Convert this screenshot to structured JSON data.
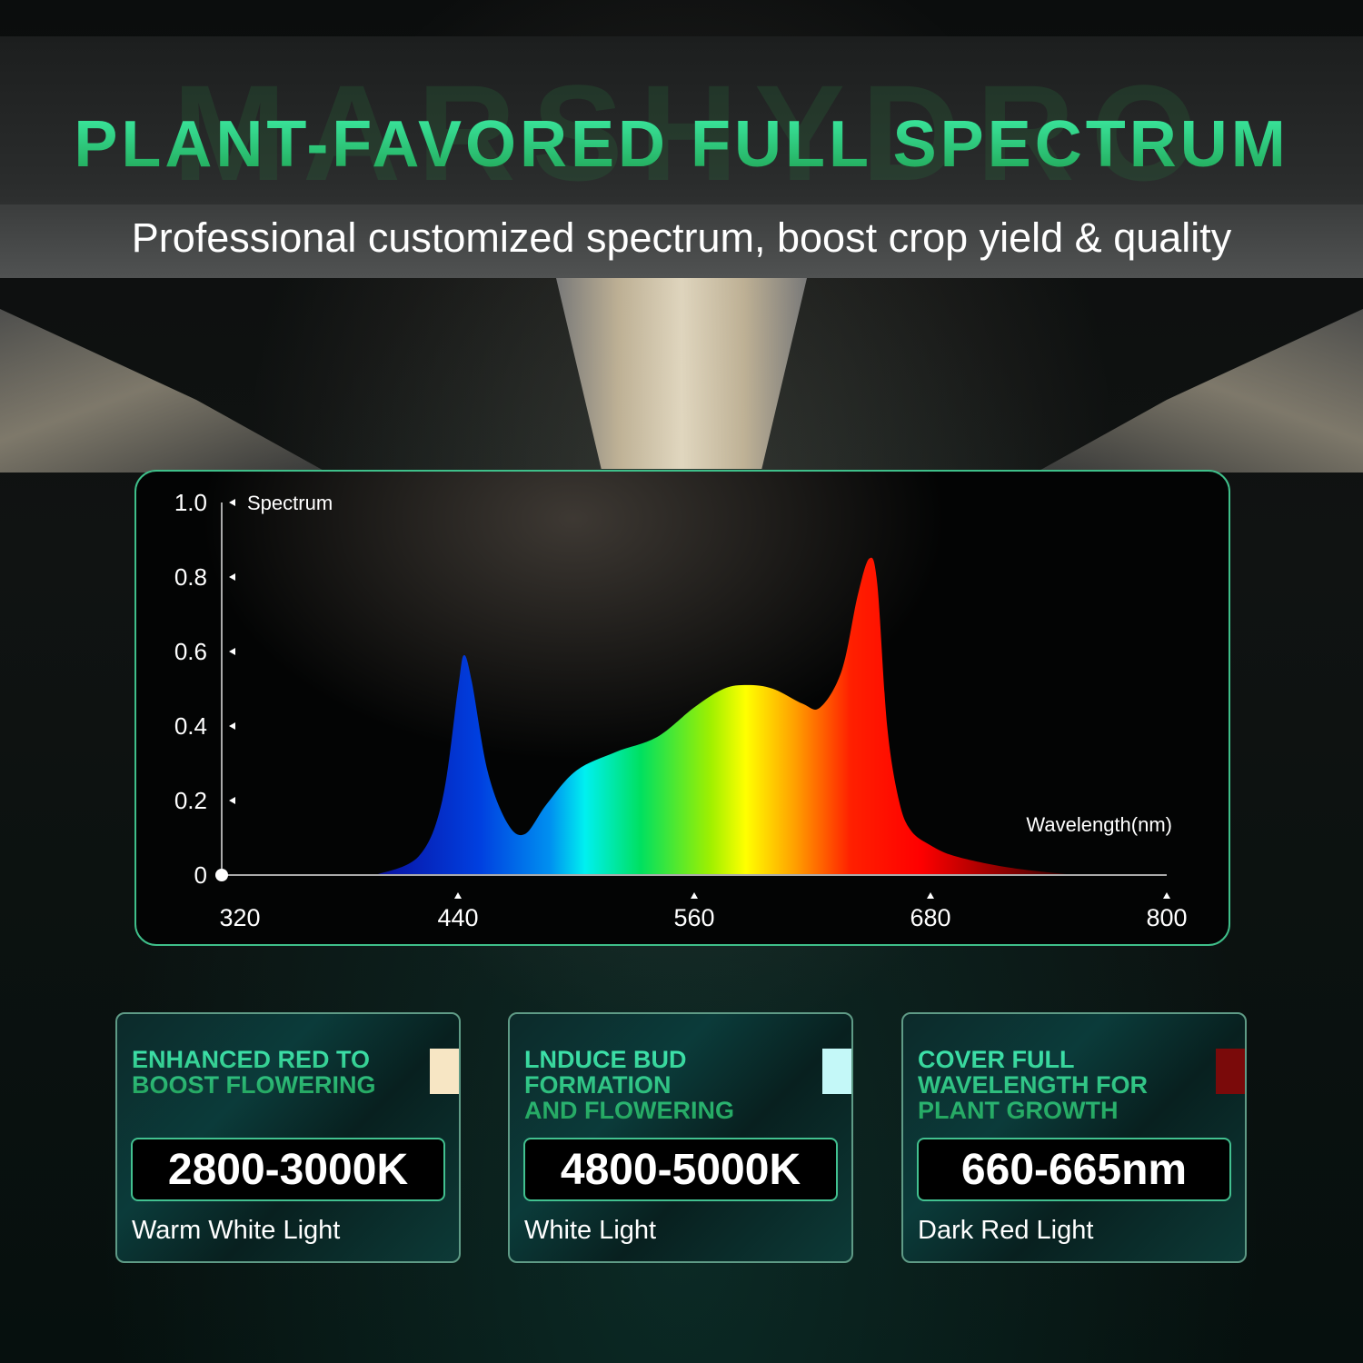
{
  "brand_watermark": "MARSHYDRO",
  "header": {
    "title": "PLANT-FAVORED FULL SPECTRUM",
    "subtitle": "Professional customized spectrum, boost crop yield & quality"
  },
  "chart_data": {
    "type": "area",
    "title": "",
    "ylabel": "Spectrum",
    "xlabel": "Wavelength(nm)",
    "xlim": [
      320,
      800
    ],
    "ylim": [
      0,
      1.0
    ],
    "x_ticks": [
      "320",
      "440",
      "560",
      "680",
      "800"
    ],
    "y_ticks": [
      "0",
      "0.2",
      "0.4",
      "0.6",
      "0.8",
      "1.0"
    ],
    "grid": false,
    "fill": "wavelength-color gradient",
    "x": [
      398,
      420,
      432,
      440,
      443,
      447,
      455,
      465,
      474,
      485,
      500,
      520,
      541,
      560,
      575,
      587,
      600,
      615,
      624,
      635,
      643,
      649,
      653,
      658,
      664,
      670,
      680,
      693,
      720,
      753
    ],
    "y": [
      0.0,
      0.05,
      0.2,
      0.5,
      0.59,
      0.52,
      0.28,
      0.14,
      0.11,
      0.19,
      0.28,
      0.33,
      0.37,
      0.45,
      0.5,
      0.51,
      0.5,
      0.46,
      0.45,
      0.55,
      0.75,
      0.85,
      0.78,
      0.4,
      0.2,
      0.12,
      0.08,
      0.05,
      0.02,
      0.0
    ]
  },
  "cards": [
    {
      "title": "ENHANCED RED TO\nBOOST FLOWERING",
      "value": "2800-3000K",
      "label": "Warm White Light",
      "swatch": "#f7e6c4"
    },
    {
      "title": "LNDUCE BUD\nFORMATION\nAND FLOWERING",
      "value": "4800-5000K",
      "label": "White Light",
      "swatch": "#c4f8f8"
    },
    {
      "title": "COVER FULL\nWAVELENGTH FOR\nPLANT GROWTH",
      "value": "660-665nm",
      "label": "Dark Red Light",
      "swatch": "#7a0a0a"
    }
  ]
}
